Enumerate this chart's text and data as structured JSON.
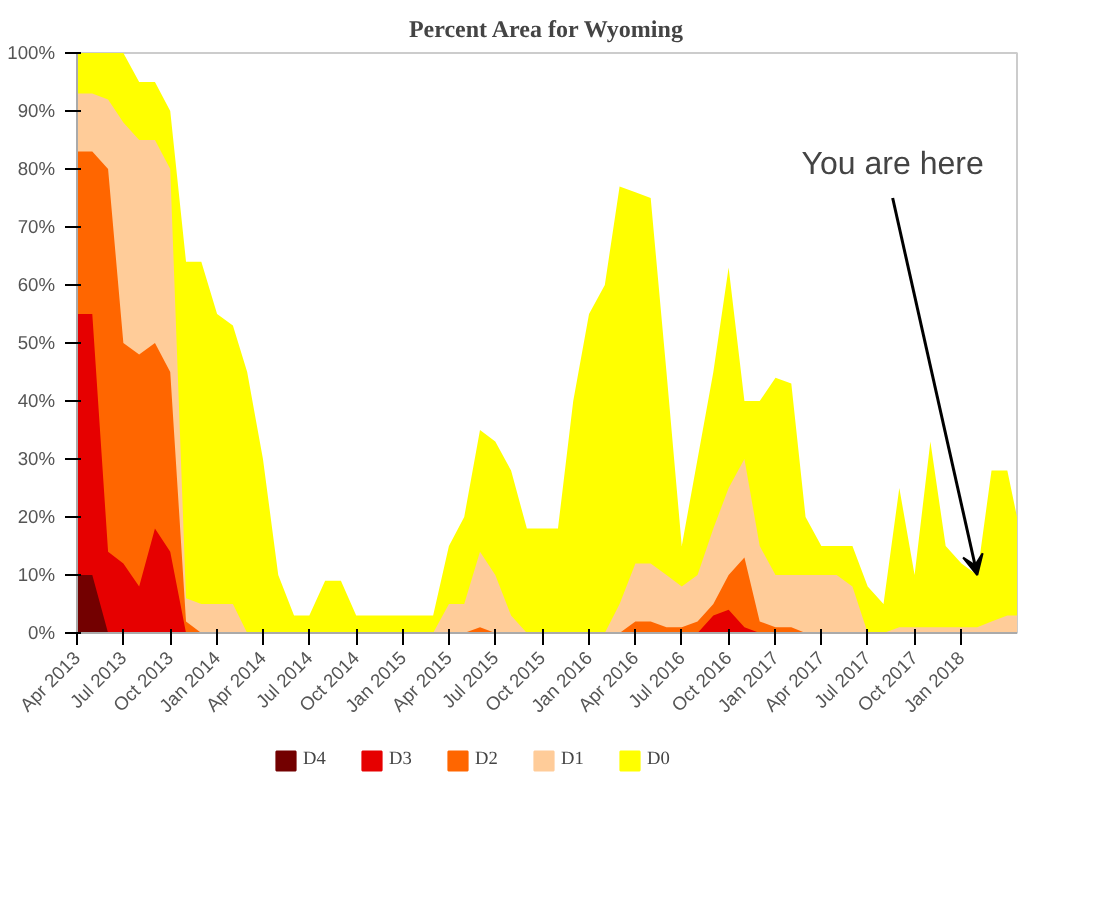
{
  "chart_data": {
    "type": "area",
    "title": "Percent Area for Wyoming",
    "x": [
      "2013-04-01",
      "2013-05-01",
      "2013-06-01",
      "2013-07-01",
      "2013-08-01",
      "2013-09-01",
      "2013-10-01",
      "2013-11-01",
      "2013-12-01",
      "2014-01-01",
      "2014-02-01",
      "2014-03-01",
      "2014-04-01",
      "2014-05-01",
      "2014-06-01",
      "2014-07-01",
      "2014-08-01",
      "2014-09-01",
      "2014-10-01",
      "2014-11-01",
      "2014-12-01",
      "2015-01-01",
      "2015-02-01",
      "2015-03-01",
      "2015-04-01",
      "2015-05-01",
      "2015-06-01",
      "2015-07-01",
      "2015-08-01",
      "2015-09-01",
      "2015-10-01",
      "2015-11-01",
      "2015-12-01",
      "2016-01-01",
      "2016-02-01",
      "2016-03-01",
      "2016-04-01",
      "2016-05-01",
      "2016-06-01",
      "2016-07-01",
      "2016-08-01",
      "2016-09-01",
      "2016-10-01",
      "2016-11-01",
      "2016-12-01",
      "2017-01-01",
      "2017-02-01",
      "2017-03-01",
      "2017-04-01",
      "2017-05-01",
      "2017-06-01",
      "2017-07-01",
      "2017-08-01",
      "2017-09-01",
      "2017-10-01",
      "2017-11-01",
      "2017-12-01",
      "2018-01-01",
      "2018-02-01",
      "2018-03-01",
      "2018-04-01",
      "2018-04-20"
    ],
    "series": [
      {
        "name": "D0",
        "color": "#ffff00",
        "values": [
          100,
          100,
          100,
          100,
          95,
          95,
          90,
          64,
          64,
          55,
          53,
          45,
          30,
          10,
          3,
          3,
          9,
          9,
          3,
          3,
          3,
          3,
          3,
          3,
          15,
          20,
          35,
          33,
          28,
          18,
          18,
          18,
          40,
          55,
          60,
          77,
          76,
          75,
          45,
          15,
          30,
          45,
          63,
          40,
          40,
          44,
          43,
          20,
          15,
          15,
          15,
          8,
          5,
          25,
          10,
          33,
          15,
          12,
          10,
          28,
          28,
          20
        ]
      },
      {
        "name": "D1",
        "color": "#ffcc99",
        "values": [
          93,
          93,
          92,
          88,
          85,
          85,
          80,
          6,
          5,
          5,
          5,
          0,
          0,
          0,
          0,
          0,
          0,
          0,
          0,
          0,
          0,
          0,
          0,
          0,
          5,
          5,
          14,
          10,
          3,
          0,
          0,
          0,
          0,
          0,
          0,
          5,
          12,
          12,
          10,
          8,
          10,
          18,
          25,
          30,
          15,
          10,
          10,
          10,
          10,
          10,
          8,
          0,
          0,
          1,
          1,
          1,
          1,
          1,
          1,
          2,
          3,
          3
        ]
      },
      {
        "name": "D2",
        "color": "#ff6600",
        "values": [
          83,
          83,
          80,
          50,
          48,
          50,
          45,
          2,
          0,
          0,
          0,
          0,
          0,
          0,
          0,
          0,
          0,
          0,
          0,
          0,
          0,
          0,
          0,
          0,
          0,
          0,
          1,
          0,
          0,
          0,
          0,
          0,
          0,
          0,
          0,
          0,
          2,
          2,
          1,
          1,
          2,
          5,
          10,
          13,
          2,
          1,
          1,
          0,
          0,
          0,
          0,
          0,
          0,
          0,
          0,
          0,
          0,
          0,
          0,
          0,
          0,
          0
        ]
      },
      {
        "name": "D3",
        "color": "#e60000",
        "values": [
          55,
          55,
          14,
          12,
          8,
          18,
          14,
          0,
          0,
          0,
          0,
          0,
          0,
          0,
          0,
          0,
          0,
          0,
          0,
          0,
          0,
          0,
          0,
          0,
          0,
          0,
          0,
          0,
          0,
          0,
          0,
          0,
          0,
          0,
          0,
          0,
          0,
          0,
          0,
          0,
          0,
          3,
          4,
          1,
          0,
          0,
          0,
          0,
          0,
          0,
          0,
          0,
          0,
          0,
          0,
          0,
          0,
          0,
          0,
          0,
          0,
          0
        ]
      },
      {
        "name": "D4",
        "color": "#730000",
        "values": [
          10,
          10,
          0,
          0,
          0,
          0,
          0,
          0,
          0,
          0,
          0,
          0,
          0,
          0,
          0,
          0,
          0,
          0,
          0,
          0,
          0,
          0,
          0,
          0,
          0,
          0,
          0,
          0,
          0,
          0,
          0,
          0,
          0,
          0,
          0,
          0,
          0,
          0,
          0,
          0,
          0,
          0,
          0,
          0,
          0,
          0,
          0,
          0,
          0,
          0,
          0,
          0,
          0,
          0,
          0,
          0,
          0,
          0,
          0,
          0,
          0,
          0
        ]
      }
    ],
    "xlim": [
      "2013-04-01",
      "2018-04-20"
    ],
    "xticks": [
      {
        "value": "2013-04-01",
        "label": "Apr 2013"
      },
      {
        "value": "2013-07-01",
        "label": "Jul 2013"
      },
      {
        "value": "2013-10-01",
        "label": "Oct 2013"
      },
      {
        "value": "2014-01-01",
        "label": "Jan 2014"
      },
      {
        "value": "2014-04-01",
        "label": "Apr 2014"
      },
      {
        "value": "2014-07-01",
        "label": "Jul 2014"
      },
      {
        "value": "2014-10-01",
        "label": "Oct 2014"
      },
      {
        "value": "2015-01-01",
        "label": "Jan 2015"
      },
      {
        "value": "2015-04-01",
        "label": "Apr 2015"
      },
      {
        "value": "2015-07-01",
        "label": "Jul 2015"
      },
      {
        "value": "2015-10-01",
        "label": "Oct 2015"
      },
      {
        "value": "2016-01-01",
        "label": "Jan 2016"
      },
      {
        "value": "2016-04-01",
        "label": "Apr 2016"
      },
      {
        "value": "2016-07-01",
        "label": "Jul 2016"
      },
      {
        "value": "2016-10-01",
        "label": "Oct 2016"
      },
      {
        "value": "2017-01-01",
        "label": "Jan 2017"
      },
      {
        "value": "2017-04-01",
        "label": "Apr 2017"
      },
      {
        "value": "2017-07-01",
        "label": "Jul 2017"
      },
      {
        "value": "2017-10-01",
        "label": "Oct 2017"
      },
      {
        "value": "2018-01-01",
        "label": "Jan 2018"
      }
    ],
    "ylim": [
      0,
      100
    ],
    "yticks": [
      {
        "value": 0,
        "label": "0%"
      },
      {
        "value": 10,
        "label": "10%"
      },
      {
        "value": 20,
        "label": "20%"
      },
      {
        "value": 30,
        "label": "30%"
      },
      {
        "value": 40,
        "label": "40%"
      },
      {
        "value": 50,
        "label": "50%"
      },
      {
        "value": 60,
        "label": "60%"
      },
      {
        "value": 70,
        "label": "70%"
      },
      {
        "value": 80,
        "label": "80%"
      },
      {
        "value": 90,
        "label": "90%"
      },
      {
        "value": 100,
        "label": "100%"
      }
    ],
    "grid": false,
    "legend": "bottom",
    "annotations": [
      {
        "text": "You are here",
        "x": "2018-02-01",
        "y": 10
      }
    ]
  }
}
